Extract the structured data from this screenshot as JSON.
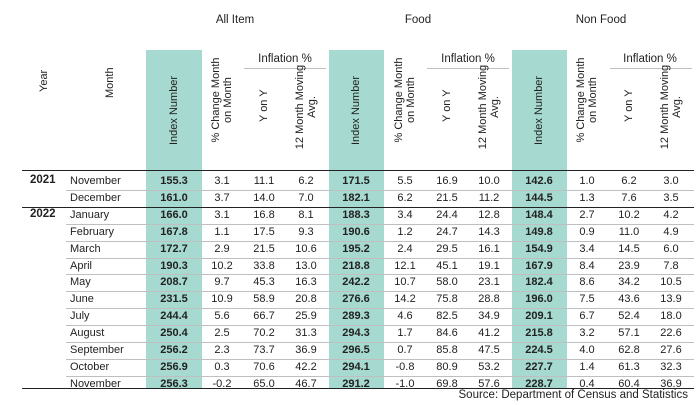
{
  "header": {
    "year_label": "Year",
    "month_label": "Month",
    "groups": [
      "All Item",
      "Food",
      "Non Food"
    ],
    "inflation_label": "Inflation %",
    "index_number": "Index Number",
    "pct_change": "% Change Month on Month",
    "y_on_y": "Y on Y",
    "moving_avg": "12 Month Moving Avg."
  },
  "rows": [
    {
      "year": "2021",
      "month": "November",
      "v": [
        "155.3",
        "3.1",
        "11.1",
        "6.2",
        "171.5",
        "5.5",
        "16.9",
        "10.0",
        "142.6",
        "1.0",
        "6.2",
        "3.0"
      ]
    },
    {
      "year": "",
      "month": "December",
      "v": [
        "161.0",
        "3.7",
        "14.0",
        "7.0",
        "182.1",
        "6.2",
        "21.5",
        "11.2",
        "144.5",
        "1.3",
        "7.6",
        "3.5"
      ]
    },
    {
      "year": "2022",
      "month": "January",
      "v": [
        "166.0",
        "3.1",
        "16.8",
        "8.1",
        "188.3",
        "3.4",
        "24.4",
        "12.8",
        "148.4",
        "2.7",
        "10.2",
        "4.2"
      ]
    },
    {
      "year": "",
      "month": "February",
      "v": [
        "167.8",
        "1.1",
        "17.5",
        "9.3",
        "190.6",
        "1.2",
        "24.7",
        "14.3",
        "149.8",
        "0.9",
        "11.0",
        "4.9"
      ]
    },
    {
      "year": "",
      "month": "March",
      "v": [
        "172.7",
        "2.9",
        "21.5",
        "10.6",
        "195.2",
        "2.4",
        "29.5",
        "16.1",
        "154.9",
        "3.4",
        "14.5",
        "6.0"
      ]
    },
    {
      "year": "",
      "month": "April",
      "v": [
        "190.3",
        "10.2",
        "33.8",
        "13.0",
        "218.8",
        "12.1",
        "45.1",
        "19.1",
        "167.9",
        "8.4",
        "23.9",
        "7.8"
      ]
    },
    {
      "year": "",
      "month": "May",
      "v": [
        "208.7",
        "9.7",
        "45.3",
        "16.3",
        "242.2",
        "10.7",
        "58.0",
        "23.1",
        "182.4",
        "8.6",
        "34.2",
        "10.5"
      ]
    },
    {
      "year": "",
      "month": "June",
      "v": [
        "231.5",
        "10.9",
        "58.9",
        "20.8",
        "276.6",
        "14.2",
        "75.8",
        "28.8",
        "196.0",
        "7.5",
        "43.6",
        "13.9"
      ]
    },
    {
      "year": "",
      "month": "July",
      "v": [
        "244.4",
        "5.6",
        "66.7",
        "25.9",
        "289.3",
        "4.6",
        "82.5",
        "34.9",
        "209.1",
        "6.7",
        "52.4",
        "18.0"
      ]
    },
    {
      "year": "",
      "month": "August",
      "v": [
        "250.4",
        "2.5",
        "70.2",
        "31.3",
        "294.3",
        "1.7",
        "84.6",
        "41.2",
        "215.8",
        "3.2",
        "57.1",
        "22.6"
      ]
    },
    {
      "year": "",
      "month": "September",
      "v": [
        "256.2",
        "2.3",
        "73.7",
        "36.9",
        "296.5",
        "0.7",
        "85.8",
        "47.5",
        "224.5",
        "4.0",
        "62.8",
        "27.6"
      ]
    },
    {
      "year": "",
      "month": "October",
      "v": [
        "256.9",
        "0.3",
        "70.6",
        "42.2",
        "294.1",
        "-0.8",
        "80.9",
        "53.2",
        "227.7",
        "1.4",
        "61.3",
        "32.3"
      ]
    },
    {
      "year": "",
      "month": "November",
      "v": [
        "256.3",
        "-0.2",
        "65.0",
        "46.7",
        "291.2",
        "-1.0",
        "69.8",
        "57.6",
        "228.7",
        "0.4",
        "60.4",
        "36.9"
      ]
    }
  ],
  "source": "Source: Department of Census and Statistics",
  "colors": {
    "highlight": "#a6d9cf"
  }
}
